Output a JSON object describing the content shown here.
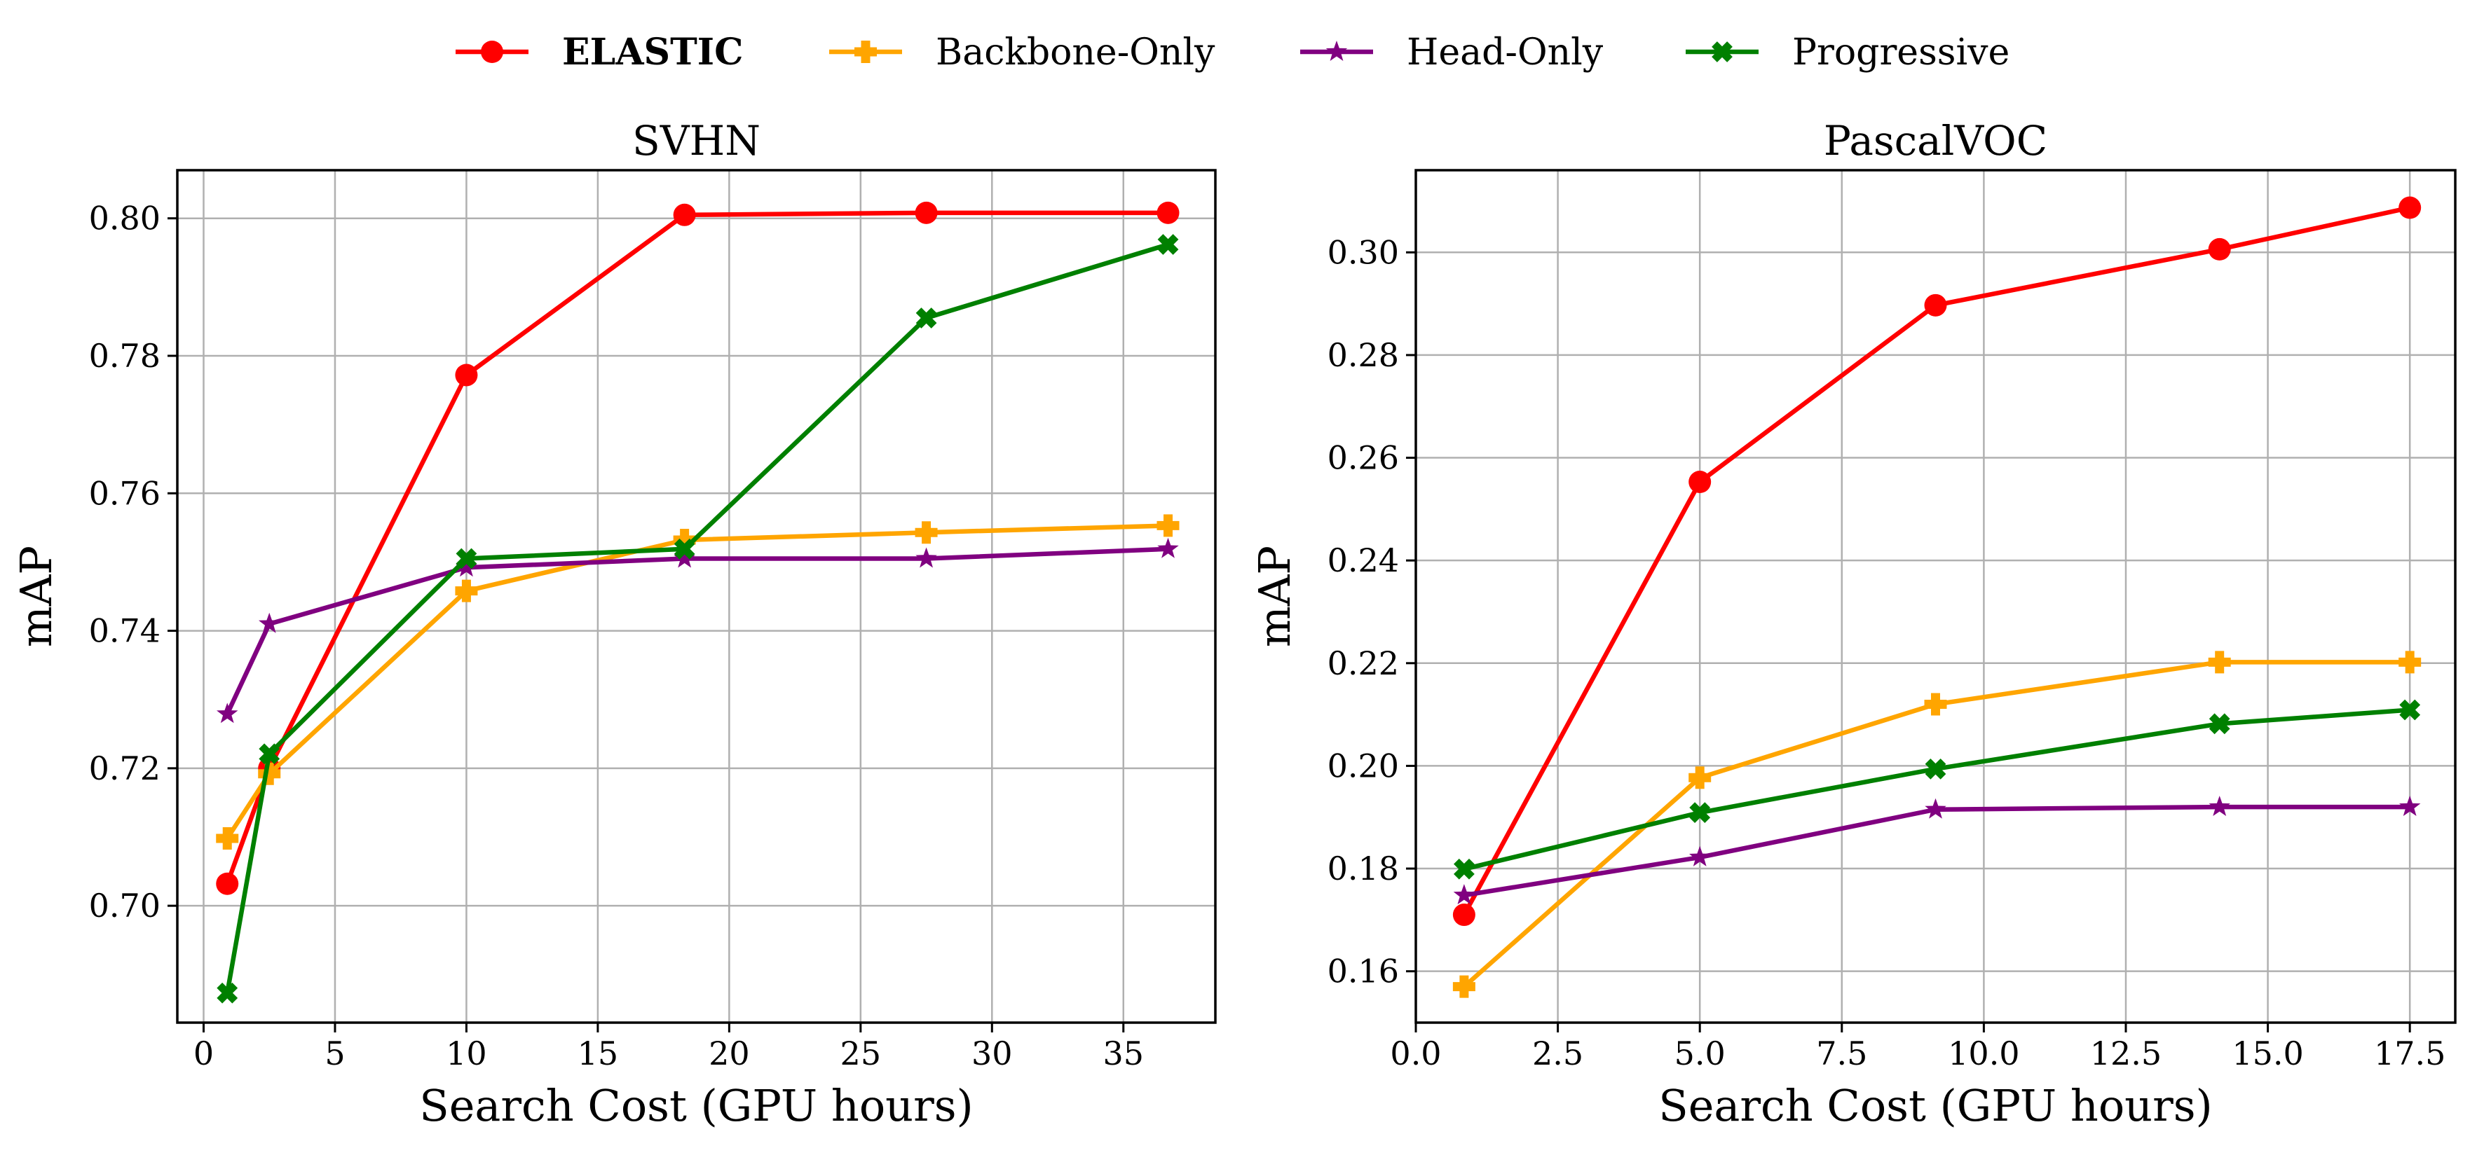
{
  "legend": [
    {
      "name": "ELASTIC",
      "bold": true,
      "color": "#ff0000",
      "marker": "circle"
    },
    {
      "name": "Backbone-Only",
      "bold": false,
      "color": "#ffa500",
      "marker": "plus"
    },
    {
      "name": "Head-Only",
      "bold": false,
      "color": "#800080",
      "marker": "star"
    },
    {
      "name": "Progressive",
      "bold": false,
      "color": "#008000",
      "marker": "x"
    }
  ],
  "chart_data": [
    {
      "type": "line",
      "title": "SVHN",
      "xlabel": "Search Cost (GPU hours)",
      "ylabel": "mAP",
      "xlim": [
        -1.0,
        38.5
      ],
      "ylim": [
        0.683,
        0.807
      ],
      "xticks": [
        0,
        5,
        10,
        15,
        20,
        25,
        30,
        35
      ],
      "xtick_labels": [
        "0",
        "5",
        "10",
        "15",
        "20",
        "25",
        "30",
        "35"
      ],
      "yticks": [
        0.7,
        0.72,
        0.74,
        0.76,
        0.78,
        0.8
      ],
      "ytick_labels": [
        "0.70",
        "0.72",
        "0.74",
        "0.76",
        "0.78",
        "0.80"
      ],
      "grid": true,
      "series": [
        {
          "name": "ELASTIC",
          "color": "#ff0000",
          "marker": "circle",
          "x": [
            0.9,
            2.5,
            10.0,
            18.3,
            27.5,
            36.7
          ],
          "y": [
            0.7032,
            0.72,
            0.7772,
            0.8005,
            0.8008,
            0.8008
          ]
        },
        {
          "name": "Backbone-Only",
          "color": "#ffa500",
          "marker": "plus",
          "x": [
            0.9,
            2.5,
            10.0,
            18.3,
            27.5,
            36.7
          ],
          "y": [
            0.7098,
            0.7192,
            0.7458,
            0.7532,
            0.7543,
            0.7553
          ]
        },
        {
          "name": "Head-Only",
          "color": "#800080",
          "marker": "star",
          "x": [
            0.9,
            2.5,
            10.0,
            18.3,
            27.5,
            36.7
          ],
          "y": [
            0.7279,
            0.741,
            0.7492,
            0.7505,
            0.7505,
            0.7519
          ]
        },
        {
          "name": "Progressive",
          "color": "#008000",
          "marker": "x",
          "x": [
            0.9,
            2.5,
            10.0,
            18.3,
            27.5,
            36.7
          ],
          "y": [
            0.6873,
            0.7221,
            0.7505,
            0.7519,
            0.7855,
            0.7962
          ]
        }
      ]
    },
    {
      "type": "line",
      "title": "PascalVOC",
      "xlabel": "Search Cost (GPU hours)",
      "ylabel": "mAP",
      "xlim": [
        0.0,
        18.3
      ],
      "ylim": [
        0.15,
        0.316
      ],
      "xticks": [
        0.0,
        2.5,
        5.0,
        7.5,
        10.0,
        12.5,
        15.0,
        17.5
      ],
      "xtick_labels": [
        "0.0",
        "2.5",
        "5.0",
        "7.5",
        "10.0",
        "12.5",
        "15.0",
        "17.5"
      ],
      "yticks": [
        0.16,
        0.18,
        0.2,
        0.22,
        0.24,
        0.26,
        0.28,
        0.3
      ],
      "ytick_labels": [
        "0.16",
        "0.18",
        "0.20",
        "0.22",
        "0.24",
        "0.26",
        "0.28",
        "0.30"
      ],
      "grid": true,
      "series": [
        {
          "name": "ELASTIC",
          "color": "#ff0000",
          "marker": "circle",
          "x": [
            0.85,
            5.0,
            9.15,
            14.15,
            17.5
          ],
          "y": [
            0.171,
            0.2553,
            0.2897,
            0.3006,
            0.3087
          ]
        },
        {
          "name": "Backbone-Only",
          "color": "#ffa500",
          "marker": "plus",
          "x": [
            0.85,
            5.0,
            9.15,
            14.15,
            17.5
          ],
          "y": [
            0.157,
            0.1977,
            0.212,
            0.2202,
            0.2202
          ]
        },
        {
          "name": "Head-Only",
          "color": "#800080",
          "marker": "star",
          "x": [
            0.85,
            5.0,
            9.15,
            14.15,
            17.5
          ],
          "y": [
            0.1748,
            0.1822,
            0.1915,
            0.192,
            0.192
          ]
        },
        {
          "name": "Progressive",
          "color": "#008000",
          "marker": "x",
          "x": [
            0.85,
            5.0,
            9.15,
            14.15,
            17.5
          ],
          "y": [
            0.1799,
            0.1909,
            0.1994,
            0.2082,
            0.2109
          ]
        }
      ]
    }
  ]
}
